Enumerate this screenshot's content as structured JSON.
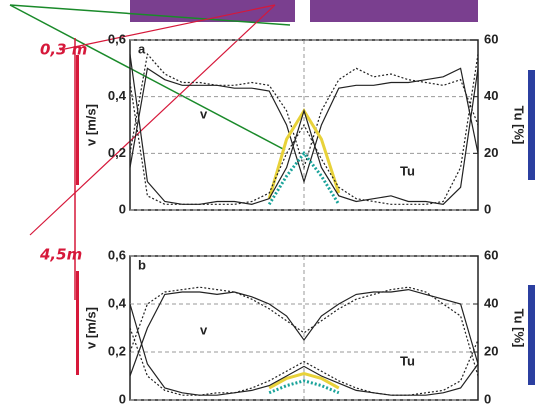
{
  "chart_data": [
    {
      "type": "line",
      "panel_label": "a",
      "y_label": "v [m/s]",
      "y2_label": "Tu [%]",
      "annotations": [
        "v",
        "Tu"
      ],
      "note": "0,3 m",
      "x": [
        0,
        1,
        2,
        3,
        4,
        5,
        6,
        7,
        8,
        9,
        10,
        11,
        12,
        13,
        14,
        15,
        16,
        17,
        18,
        19,
        20
      ],
      "xlim": [
        0,
        20
      ],
      "ylim": [
        0,
        0.6
      ],
      "yticks": [
        {
          "value": 0,
          "label": "0"
        },
        {
          "value": 0.2,
          "label": "0,2"
        },
        {
          "value": 0.4,
          "label": "0,4"
        },
        {
          "value": 0.6,
          "label": "0,6"
        }
      ],
      "y2lim": [
        0,
        60
      ],
      "y2ticks": [
        0,
        20,
        40,
        60
      ],
      "grid": true,
      "series": [
        {
          "color": "#222222",
          "values": [
            0.15,
            0.5,
            0.46,
            0.44,
            0.44,
            0.44,
            0.43,
            0.43,
            0.42,
            0.3,
            0.1,
            0.3,
            0.43,
            0.44,
            0.44,
            0.45,
            0.45,
            0.46,
            0.47,
            0.5,
            0.2
          ]
        },
        {
          "color": "#222222",
          "values": [
            0.2,
            0.55,
            0.48,
            0.45,
            0.45,
            0.44,
            0.44,
            0.45,
            0.44,
            0.35,
            0.15,
            0.35,
            0.46,
            0.5,
            0.47,
            0.48,
            0.46,
            0.45,
            0.44,
            0.46,
            0.3
          ]
        },
        {
          "color": "#e8d23a",
          "axis": "y2",
          "values": [
            null,
            null,
            null,
            null,
            null,
            null,
            null,
            null,
            4,
            25,
            35,
            25,
            6,
            null,
            null,
            null,
            null,
            null,
            null,
            null,
            null
          ]
        },
        {
          "color": "#1aa39a",
          "axis": "y2",
          "values": [
            null,
            null,
            null,
            null,
            null,
            null,
            null,
            null,
            2,
            12,
            20,
            12,
            2,
            null,
            null,
            null,
            null,
            null,
            null,
            null,
            null
          ]
        },
        {
          "color": "#222222",
          "axis": "y2",
          "values": [
            55,
            10,
            3,
            2,
            2,
            3,
            3,
            2,
            4,
            15,
            35,
            15,
            5,
            3,
            4,
            5,
            3,
            3,
            2,
            8,
            50
          ]
        },
        {
          "color": "#222222",
          "axis": "y2",
          "values": [
            45,
            5,
            2,
            2,
            2,
            2,
            2,
            3,
            6,
            20,
            30,
            18,
            8,
            4,
            3,
            2,
            2,
            2,
            3,
            15,
            55
          ]
        }
      ]
    },
    {
      "type": "line",
      "panel_label": "b",
      "y_label": "v [m/s]",
      "y2_label": "Tu [%]",
      "annotations": [
        "v",
        "Tu"
      ],
      "note": "4,5m",
      "x": [
        0,
        1,
        2,
        3,
        4,
        5,
        6,
        7,
        8,
        9,
        10,
        11,
        12,
        13,
        14,
        15,
        16,
        17,
        18,
        19,
        20
      ],
      "xlim": [
        0,
        20
      ],
      "ylim": [
        0,
        0.6
      ],
      "yticks": [
        {
          "value": 0,
          "label": "0"
        },
        {
          "value": 0.2,
          "label": "0,2"
        },
        {
          "value": 0.4,
          "label": "0,4"
        },
        {
          "value": 0.6,
          "label": "0,6"
        }
      ],
      "y2lim": [
        0,
        60
      ],
      "y2ticks": [
        0,
        20,
        40,
        60
      ],
      "grid": true,
      "series": [
        {
          "color": "#222222",
          "values": [
            0.1,
            0.3,
            0.44,
            0.45,
            0.45,
            0.44,
            0.45,
            0.43,
            0.4,
            0.35,
            0.25,
            0.35,
            0.4,
            0.44,
            0.45,
            0.45,
            0.46,
            0.44,
            0.42,
            0.4,
            0.15
          ]
        },
        {
          "color": "#222222",
          "values": [
            0.2,
            0.4,
            0.45,
            0.46,
            0.47,
            0.46,
            0.45,
            0.42,
            0.38,
            0.33,
            0.28,
            0.33,
            0.38,
            0.42,
            0.44,
            0.46,
            0.47,
            0.45,
            0.4,
            0.35,
            0.1
          ]
        },
        {
          "color": "#e8d23a",
          "axis": "y2",
          "values": [
            null,
            null,
            null,
            null,
            null,
            null,
            null,
            null,
            5,
            9,
            11,
            9,
            5,
            null,
            null,
            null,
            null,
            null,
            null,
            null,
            null
          ]
        },
        {
          "color": "#1aa39a",
          "axis": "y2",
          "values": [
            null,
            null,
            null,
            null,
            null,
            null,
            null,
            null,
            3,
            6,
            8,
            6,
            3,
            null,
            null,
            null,
            null,
            null,
            null,
            null,
            null
          ]
        },
        {
          "color": "#222222",
          "axis": "y2",
          "values": [
            40,
            15,
            5,
            3,
            2,
            2,
            3,
            4,
            6,
            10,
            14,
            10,
            7,
            4,
            3,
            2,
            2,
            2,
            3,
            5,
            15
          ]
        },
        {
          "color": "#222222",
          "axis": "y2",
          "values": [
            30,
            10,
            4,
            2,
            2,
            3,
            3,
            5,
            8,
            12,
            16,
            12,
            8,
            5,
            3,
            2,
            2,
            3,
            4,
            8,
            25
          ]
        }
      ]
    }
  ]
}
